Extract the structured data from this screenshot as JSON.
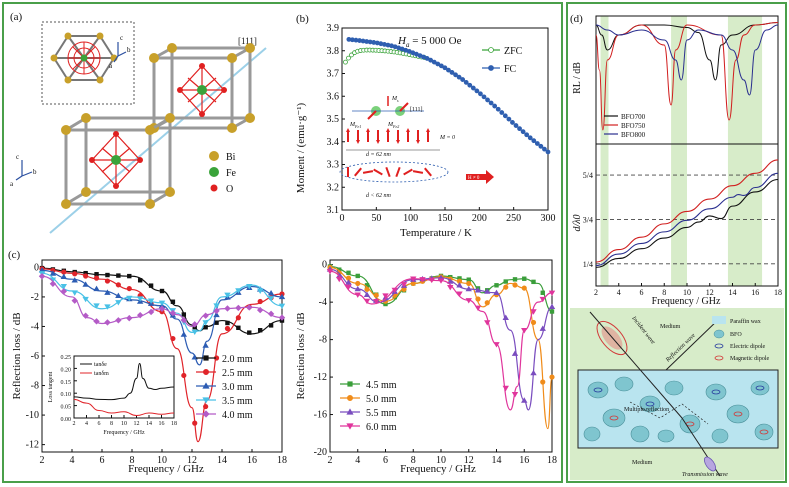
{
  "colors": {
    "frame": "#4a9f4a",
    "green_band": "#d7ecc9",
    "crystal_blue": "#9cd0e8",
    "bi": "#c8a02a",
    "fe": "#3aa33a",
    "o": "#e02020"
  },
  "panel_a": {
    "label": "(a)",
    "direction": "[111]",
    "inset_axes": {
      "c": "c",
      "b": "b",
      "a": "a"
    },
    "main_axes": {
      "c": "c",
      "b": "b",
      "a": "a"
    },
    "legend": [
      {
        "name": "Bi",
        "color": "#c8a02a"
      },
      {
        "name": "Fe",
        "color": "#3aa33a"
      },
      {
        "name": "O",
        "color": "#e02020"
      }
    ]
  },
  "panel_b": {
    "label": "(b)",
    "field_label": "H",
    "field_sub": "a",
    "field_value": " = 5 000 Oe",
    "xlabel": "Temperature / K",
    "ylabel": "Moment / (emu·g⁻¹)",
    "spin": {
      "ms": "M",
      "ms_sub": "s",
      "dir": "[111]",
      "mfe1": "M",
      "mfe1_sub": "Fe1",
      "mfe2": "M",
      "mfe2_sub": "Fe2",
      "m0": "M = 0",
      "d62": "d = 62 nm",
      "dlt": "d < 62 nm",
      "arrow_text": "H ≠ 0"
    }
  },
  "panel_c": {
    "label": "(c)"
  },
  "panel_d": {
    "label": "(d)"
  },
  "schematic": {
    "medium_top": "Medium",
    "medium_bottom": "Medium",
    "incident": "Incident wave",
    "reflection": "Reflection wave",
    "multiple": "Multiple reflection",
    "transmission": "Transmission wave",
    "legend": [
      {
        "key": "paraffin",
        "label": "Paraffin wax"
      },
      {
        "key": "bfo",
        "label": "BFO"
      },
      {
        "key": "electric",
        "label": "Electric dipole"
      },
      {
        "key": "magnetic",
        "label": "Magnetic dipole"
      }
    ]
  },
  "chart_data": [
    {
      "type": "scatter",
      "panel": "b",
      "title": "",
      "xlabel": "Temperature / K",
      "ylabel": "Moment / (emu·g⁻¹)",
      "xlim": [
        0,
        300
      ],
      "ylim": [
        3.1,
        3.9
      ],
      "xticks": [
        0,
        50,
        100,
        150,
        200,
        250,
        300
      ],
      "yticks": [
        3.1,
        3.2,
        3.3,
        3.4,
        3.5,
        3.6,
        3.7,
        3.8,
        3.9
      ],
      "grid": false,
      "legend_position": "top-right",
      "series": [
        {
          "name": "ZFC",
          "color": "#3aa33a",
          "marker": "open-circle",
          "x": [
            5,
            10,
            15,
            20,
            25,
            30,
            35,
            40,
            50,
            60,
            70,
            80,
            90,
            100,
            110,
            120
          ],
          "y": [
            3.75,
            3.77,
            3.785,
            3.795,
            3.8,
            3.802,
            3.803,
            3.803,
            3.802,
            3.8,
            3.797,
            3.793,
            3.788,
            3.782,
            3.776,
            3.77
          ]
        },
        {
          "name": "FC",
          "color": "#2f5fb0",
          "marker": "filled-circle",
          "x": [
            10,
            25,
            50,
            75,
            100,
            125,
            150,
            175,
            200,
            225,
            250,
            275,
            300
          ],
          "y": [
            3.85,
            3.845,
            3.835,
            3.82,
            3.795,
            3.765,
            3.725,
            3.675,
            3.615,
            3.55,
            3.48,
            3.415,
            3.355
          ]
        }
      ]
    },
    {
      "type": "line",
      "panel": "c-left",
      "title": "",
      "xlabel": "Frequency / GHz",
      "ylabel": "Reflection loss / dB",
      "xlim": [
        2,
        18
      ],
      "ylim": [
        -12.5,
        0.5
      ],
      "xticks": [
        2,
        4,
        6,
        8,
        10,
        12,
        14,
        16,
        18
      ],
      "yticks": [
        0,
        -2,
        -4,
        -6,
        -8,
        -10,
        -12
      ],
      "legend_position": "bottom-right",
      "series": [
        {
          "name": "2.0 mm",
          "color": "#111111",
          "marker": "square",
          "x": [
            2,
            4,
            6,
            8,
            10,
            11,
            12,
            12.5,
            13,
            14,
            16,
            18
          ],
          "y": [
            -0.05,
            -0.3,
            -0.5,
            -0.6,
            -1.6,
            -2.6,
            -3.9,
            -4.3,
            -4.0,
            -3.6,
            -4.5,
            -3.6
          ]
        },
        {
          "name": "2.5 mm",
          "color": "#e0242a",
          "marker": "circle",
          "x": [
            2,
            4,
            6,
            8,
            10,
            11,
            12,
            12.4,
            13,
            14,
            16,
            18
          ],
          "y": [
            -0.1,
            -0.4,
            -0.8,
            -1.5,
            -3.0,
            -5.5,
            -9.5,
            -11.8,
            -9.0,
            -4.5,
            -2.5,
            -1.8
          ]
        },
        {
          "name": "3.0 mm",
          "color": "#2c5cb3",
          "marker": "triangle",
          "x": [
            2,
            4,
            6,
            8,
            10,
            11,
            12,
            12.5,
            13,
            14,
            16,
            18
          ],
          "y": [
            -0.2,
            -0.8,
            -1.6,
            -2.2,
            -2.6,
            -3.5,
            -5.8,
            -6.6,
            -5.0,
            -2.2,
            -1.3,
            -2.0
          ]
        },
        {
          "name": "3.5 mm",
          "color": "#49c1e6",
          "marker": "inverted-triangle",
          "x": [
            2,
            4,
            6,
            8,
            10,
            11,
            12,
            12.5,
            13,
            14,
            16,
            18
          ],
          "y": [
            -0.4,
            -1.6,
            -2.8,
            -2.0,
            -2.4,
            -3.1,
            -4.4,
            -4.3,
            -3.6,
            -2.0,
            -1.2,
            -2.6
          ]
        },
        {
          "name": "4.0 mm",
          "color": "#b45bc7",
          "marker": "diamond",
          "x": [
            2,
            4,
            5,
            6,
            8,
            10,
            11,
            12,
            13,
            14,
            16,
            18
          ],
          "y": [
            -0.6,
            -2.0,
            -3.4,
            -3.8,
            -3.4,
            -2.8,
            -3.2,
            -4.0,
            -3.2,
            -2.8,
            -2.7,
            -3.4
          ]
        }
      ]
    },
    {
      "type": "line",
      "panel": "c-inset",
      "xlabel": "Frequency / GHz",
      "ylabel": "Loss tangent",
      "xlim": [
        2,
        18
      ],
      "ylim": [
        0,
        0.25
      ],
      "xticks": [
        2,
        4,
        6,
        8,
        10,
        12,
        14,
        16,
        18
      ],
      "yticks": [
        0,
        0.05,
        0.1,
        0.15,
        0.2,
        0.25
      ],
      "series": [
        {
          "name": "tanδe",
          "color": "#111111",
          "x": [
            2,
            4,
            6,
            8,
            10,
            11,
            12,
            12.5,
            13,
            14,
            15,
            16,
            18
          ],
          "y": [
            0.085,
            0.08,
            0.075,
            0.074,
            0.08,
            0.1,
            0.16,
            0.22,
            0.16,
            0.12,
            0.115,
            0.12,
            0.125
          ]
        },
        {
          "name": "tanδm",
          "color": "#e0242a",
          "x": [
            2,
            4,
            6,
            8,
            10,
            12,
            14,
            16,
            18
          ],
          "y": [
            0.075,
            0.06,
            0.03,
            0.02,
            0.025,
            0.01,
            0.02,
            0.015,
            0.02
          ]
        }
      ]
    },
    {
      "type": "line",
      "panel": "c-right",
      "title": "",
      "xlabel": "Frequency / GHz",
      "ylabel": "Reflection loss / dB",
      "xlim": [
        2,
        18
      ],
      "ylim": [
        -20,
        0.5
      ],
      "xticks": [
        2,
        4,
        6,
        8,
        10,
        12,
        14,
        16,
        18
      ],
      "yticks": [
        0,
        -4,
        -8,
        -12,
        -16,
        -20
      ],
      "legend_position": "bottom-left",
      "series": [
        {
          "name": "4.5 mm",
          "color": "#3a9e3a",
          "marker": "square",
          "x": [
            2,
            4,
            6,
            8,
            10,
            12,
            13,
            14,
            15,
            16,
            17,
            18
          ],
          "y": [
            -0.2,
            -1.2,
            -4.2,
            -2.0,
            -1.2,
            -1.6,
            -3.0,
            -2.2,
            -1.6,
            -1.5,
            -2.0,
            -5.0
          ]
        },
        {
          "name": "5.0 mm",
          "color": "#f08c1a",
          "marker": "circle",
          "x": [
            2,
            4,
            6,
            8,
            10,
            12,
            13,
            14,
            15,
            16,
            17,
            17.7,
            18
          ],
          "y": [
            -0.3,
            -2.0,
            -3.9,
            -2.0,
            -1.3,
            -2.0,
            -4.5,
            -3.2,
            -2.0,
            -2.5,
            -8.0,
            -17.5,
            -12.0
          ]
        },
        {
          "name": "5.5 mm",
          "color": "#7a4dbf",
          "marker": "triangle",
          "x": [
            2,
            4,
            5.5,
            8,
            10,
            12,
            14,
            15,
            16,
            16.3,
            17,
            18
          ],
          "y": [
            -0.5,
            -2.6,
            -4.0,
            -1.6,
            -1.4,
            -2.6,
            -3.0,
            -7.0,
            -14.5,
            -15.5,
            -8.0,
            -4.5
          ]
        },
        {
          "name": "6.0 mm",
          "color": "#e0359c",
          "marker": "inverted-triangle",
          "x": [
            2,
            4,
            5,
            8,
            10,
            12,
            13,
            14,
            15,
            15.5,
            16,
            17,
            18
          ],
          "y": [
            -0.7,
            -3.2,
            -4.2,
            -1.5,
            -1.7,
            -3.8,
            -5.0,
            -8.5,
            -15.5,
            -13.0,
            -7.0,
            -4.0,
            -3.0
          ]
        }
      ]
    },
    {
      "type": "line",
      "panel": "d-top",
      "xlabel": "",
      "ylabel": "RL / dB",
      "xlim": [
        2,
        18
      ],
      "legend_position": "bottom-left",
      "series": [
        {
          "name": "BFO700",
          "color": "#111111",
          "x": [
            2,
            2.5,
            3,
            4,
            6,
            8,
            10,
            11,
            12,
            12.5,
            13,
            14,
            16,
            18
          ],
          "y": [
            -1,
            -3,
            -6,
            -3,
            -1,
            -1,
            -1.5,
            -2.5,
            -8,
            -12,
            -5,
            -3,
            -1,
            -0.5
          ]
        },
        {
          "name": "BFO750",
          "color": "#d11f1f",
          "x": [
            2,
            2.3,
            2.6,
            3,
            4,
            6,
            8,
            8.6,
            9,
            10,
            13,
            13.7,
            14.3,
            15,
            16,
            18
          ],
          "y": [
            -3,
            -10,
            -22,
            -8,
            -3,
            -1,
            -5,
            -17,
            -6,
            -1,
            -3,
            -20,
            -8,
            -3,
            -1,
            -0.5
          ]
        },
        {
          "name": "BFO800",
          "color": "#2a2f8f",
          "x": [
            2,
            3,
            4,
            6,
            8,
            9,
            9.5,
            10,
            11,
            13,
            14,
            15,
            15.5,
            16,
            17,
            18
          ],
          "y": [
            -1,
            -2,
            -3,
            -2,
            -4,
            -8,
            -12,
            -4,
            -2,
            -3,
            -6,
            -12,
            -15,
            -6,
            -2,
            -1
          ]
        }
      ]
    },
    {
      "type": "line",
      "panel": "d-bottom",
      "xlabel": "Frequency / GHz",
      "ylabel": "d/λ0",
      "xlim": [
        2,
        18
      ],
      "ylim": [
        0,
        1.6
      ],
      "xticks": [
        2,
        4,
        6,
        8,
        10,
        12,
        14,
        16,
        18
      ],
      "yticks_labels": [
        "1/4",
        "3/4",
        "5/4"
      ],
      "yticks_values": [
        0.25,
        0.75,
        1.25
      ],
      "series": [
        {
          "name": "BFO700",
          "color": "#111111",
          "x": [
            2,
            4,
            6,
            8,
            10,
            11,
            12,
            13,
            14,
            16,
            18
          ],
          "y": [
            0.21,
            0.31,
            0.42,
            0.54,
            0.66,
            0.72,
            0.79,
            0.76,
            0.9,
            1.06,
            1.2
          ]
        },
        {
          "name": "BFO750",
          "color": "#d11f1f",
          "x": [
            2,
            4,
            6,
            8,
            10,
            12,
            14,
            16,
            18
          ],
          "y": [
            0.27,
            0.41,
            0.55,
            0.7,
            0.84,
            0.98,
            1.13,
            1.27,
            1.42
          ]
        },
        {
          "name": "BFO800",
          "color": "#2a2f8f",
          "x": [
            2,
            4,
            6,
            8,
            10,
            12,
            14,
            14.5,
            15,
            16,
            18
          ],
          "y": [
            0.23,
            0.36,
            0.48,
            0.61,
            0.74,
            0.87,
            1.0,
            1.03,
            1.02,
            1.11,
            1.27
          ]
        }
      ]
    }
  ]
}
